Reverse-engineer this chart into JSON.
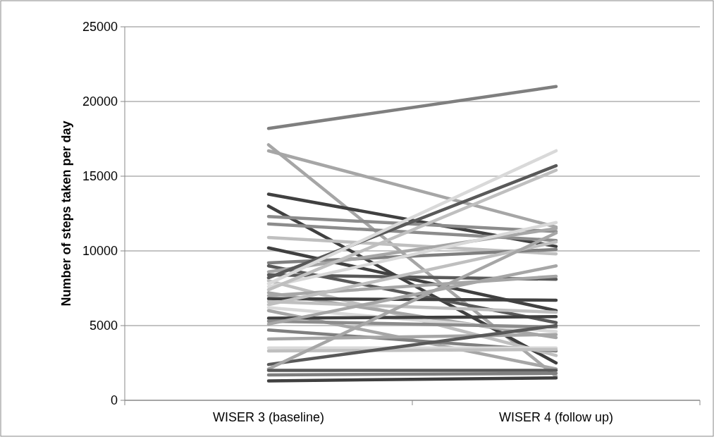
{
  "chart_data": {
    "type": "line",
    "ylabel": "Number of steps taken per day",
    "categories": [
      "WISER 3 (baseline)",
      "WISER 4 (follow up)"
    ],
    "ylim": [
      0,
      25000
    ],
    "yticks": [
      0,
      5000,
      10000,
      15000,
      20000,
      25000
    ],
    "grid": "y",
    "marker": "none",
    "line_style": "solid",
    "series": [
      {
        "color": "#7f7f7f",
        "values": [
          18200,
          21000
        ]
      },
      {
        "color": "#a6a6a6",
        "values": [
          17100,
          1600
        ]
      },
      {
        "color": "#a6a6a6",
        "values": [
          16700,
          11600
        ]
      },
      {
        "color": "#404040",
        "values": [
          13800,
          10300
        ]
      },
      {
        "color": "#404040",
        "values": [
          13000,
          2500
        ]
      },
      {
        "color": "#8c8c8c",
        "values": [
          12300,
          11300
        ]
      },
      {
        "color": "#8c8c8c",
        "values": [
          11800,
          10700
        ]
      },
      {
        "color": "#bfbfbf",
        "values": [
          10900,
          9800
        ]
      },
      {
        "color": "#404040",
        "values": [
          10200,
          6000
        ]
      },
      {
        "color": "#7f7f7f",
        "values": [
          9200,
          10100
        ]
      },
      {
        "color": "#595959",
        "values": [
          9000,
          5200
        ]
      },
      {
        "color": "#a6a6a6",
        "values": [
          8600,
          11500
        ]
      },
      {
        "color": "#595959",
        "values": [
          8400,
          8100
        ]
      },
      {
        "color": "#595959",
        "values": [
          8200,
          15700
        ]
      },
      {
        "color": "#bfbfbf",
        "values": [
          8000,
          3000
        ]
      },
      {
        "color": "#d9d9d9",
        "values": [
          7800,
          16700
        ]
      },
      {
        "color": "#d9d9d9",
        "values": [
          7600,
          11900
        ]
      },
      {
        "color": "#bfbfbf",
        "values": [
          7400,
          15400
        ]
      },
      {
        "color": "#a6a6a6",
        "values": [
          7200,
          4200
        ]
      },
      {
        "color": "#a6a6a6",
        "values": [
          7000,
          8300
        ]
      },
      {
        "color": "#404040",
        "values": [
          6800,
          6700
        ]
      },
      {
        "color": "#bfbfbf",
        "values": [
          6600,
          5900
        ]
      },
      {
        "color": "#bfbfbf",
        "values": [
          6400,
          10600
        ]
      },
      {
        "color": "#d9d9d9",
        "values": [
          6200,
          4600
        ]
      },
      {
        "color": "#a6a6a6",
        "values": [
          6000,
          2100
        ]
      },
      {
        "color": "#404040",
        "values": [
          5500,
          5600
        ]
      },
      {
        "color": "#8c8c8c",
        "values": [
          5300,
          4900
        ]
      },
      {
        "color": "#a6a6a6",
        "values": [
          5100,
          9000
        ]
      },
      {
        "color": "#7f7f7f",
        "values": [
          4700,
          3300
        ]
      },
      {
        "color": "#a6a6a6",
        "values": [
          4100,
          4400
        ]
      },
      {
        "color": "#d9d9d9",
        "values": [
          3500,
          3500
        ]
      },
      {
        "color": "#bfbfbf",
        "values": [
          3300,
          3400
        ]
      },
      {
        "color": "#595959",
        "values": [
          2400,
          5000
        ]
      },
      {
        "color": "#a6a6a6",
        "values": [
          2100,
          11200
        ]
      },
      {
        "color": "#595959",
        "values": [
          2000,
          2000
        ]
      },
      {
        "color": "#7f7f7f",
        "values": [
          1700,
          1800
        ]
      },
      {
        "color": "#404040",
        "values": [
          1300,
          1500
        ]
      }
    ]
  }
}
